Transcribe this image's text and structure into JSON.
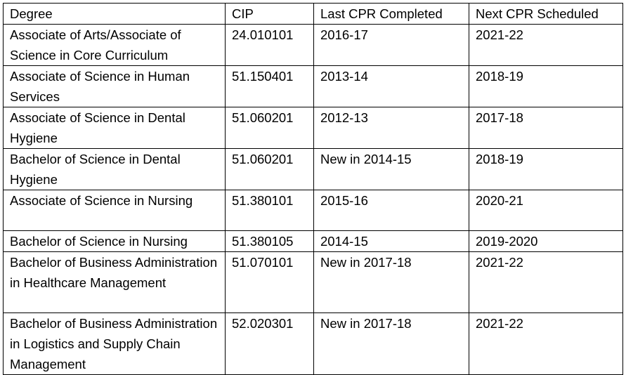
{
  "table": {
    "header": [
      "Degree",
      "CIP",
      "Last CPR Completed",
      "Next CPR Scheduled"
    ],
    "rows": [
      [
        "Associate of Arts/Associate of Science in Core Curriculum",
        "24.010101",
        "2016-17",
        "2021-22"
      ],
      [
        "Associate of Science in Human Services",
        "51.150401",
        "2013-14",
        "2018-19"
      ],
      [
        "Associate of Science in Dental Hygiene",
        "51.060201",
        "2012-13",
        "2017-18"
      ],
      [
        "Bachelor of Science in Dental Hygiene",
        "51.060201",
        "New in 2014-15",
        "2018-19"
      ],
      [
        "Associate of Science in Nursing",
        "51.380101",
        "2015-16",
        "2020-21"
      ],
      [
        "Bachelor of Science in Nursing",
        "51.380105",
        "2014-15",
        "2019-2020"
      ],
      [
        "Bachelor of Business Administration in Healthcare Management",
        "51.070101",
        "New in 2017-18",
        "2021-22"
      ],
      [
        "Bachelor of Business Administration in Logistics and Supply Chain Management",
        "52.020301",
        "New in 2017-18",
        "2021-22"
      ]
    ]
  }
}
